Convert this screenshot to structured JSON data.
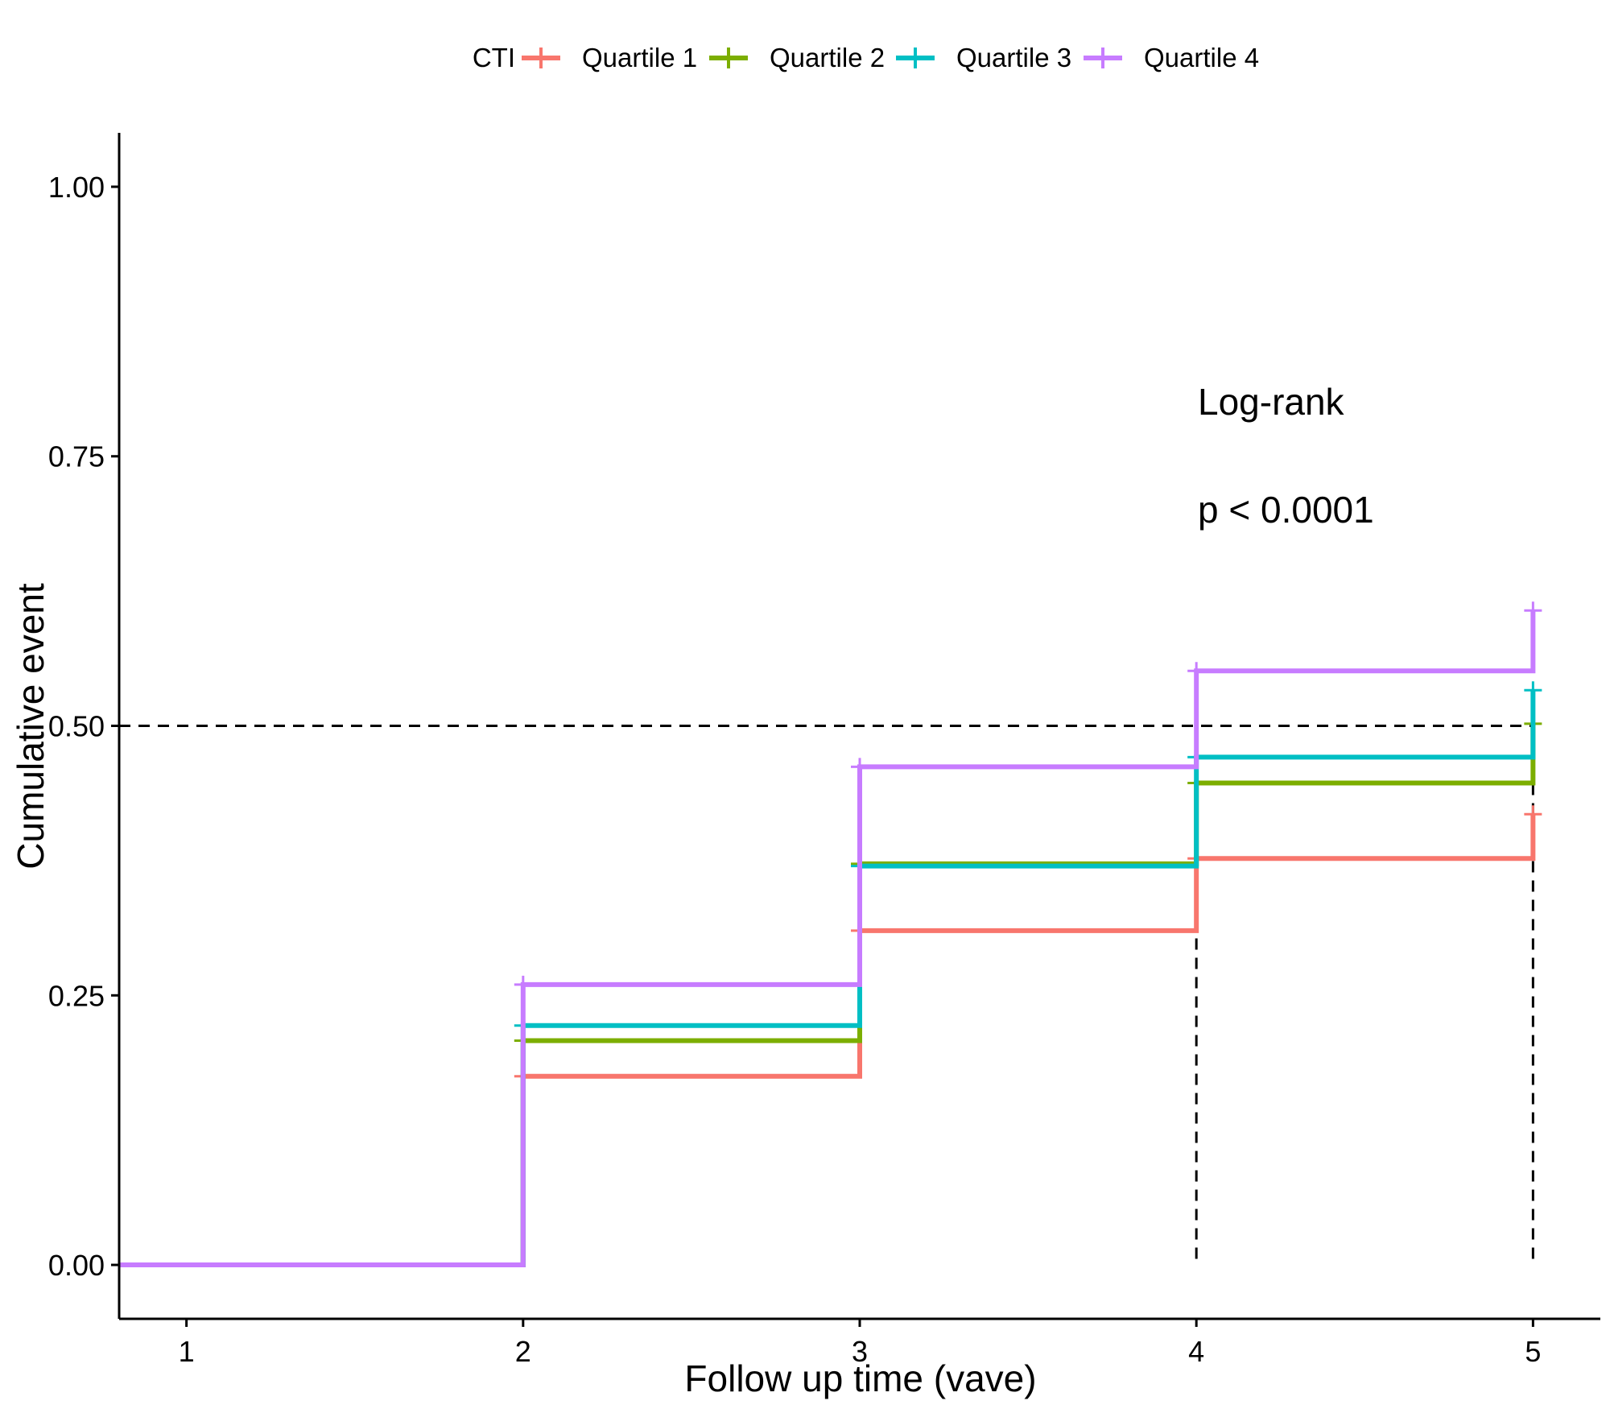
{
  "chart_data": {
    "type": "line",
    "step": true,
    "xlabel": "Follow up time (vave)",
    "ylabel": "Cumulative event",
    "xlim": [
      0.8,
      5.2
    ],
    "ylim": [
      -0.05,
      1.05
    ],
    "x_ticks": [
      1,
      2,
      3,
      4,
      5
    ],
    "y_ticks": [
      0.0,
      0.25,
      0.5,
      0.75,
      1.0
    ],
    "y_tick_labels": [
      "0.00",
      "0.25",
      "0.50",
      "0.75",
      "1.00"
    ],
    "grid": false,
    "legend": {
      "position": "top",
      "title": "CTI"
    },
    "reference_line": {
      "y": 0.5,
      "x_drops": [
        4,
        5
      ],
      "style": "dashed"
    },
    "annotation": {
      "line1": "Log-rank",
      "line2": "p < 0.0001",
      "x": 4,
      "y": 0.8
    },
    "series": [
      {
        "name": "Quartile 1",
        "color": "#F8766D",
        "x": [
          0.8,
          2,
          3,
          4,
          5
        ],
        "y": [
          0.0,
          0.175,
          0.31,
          0.377,
          0.418
        ],
        "censor_y": [
          0.175,
          0.31,
          0.377,
          0.418
        ]
      },
      {
        "name": "Quartile 2",
        "color": "#7CAE00",
        "x": [
          0.8,
          2,
          3,
          4,
          5
        ],
        "y": [
          0.0,
          0.208,
          0.372,
          0.447,
          0.502
        ],
        "censor_y": [
          0.208,
          0.372,
          0.447,
          0.502
        ]
      },
      {
        "name": "Quartile 3",
        "color": "#00BFC4",
        "x": [
          0.8,
          2,
          3,
          4,
          5
        ],
        "y": [
          0.0,
          0.222,
          0.37,
          0.471,
          0.533
        ],
        "censor_y": [
          0.222,
          0.37,
          0.471,
          0.533
        ]
      },
      {
        "name": "Quartile 4",
        "color": "#C77CFF",
        "x": [
          0.8,
          2,
          3,
          4,
          5
        ],
        "y": [
          0.0,
          0.26,
          0.462,
          0.551,
          0.607
        ],
        "censor_y": [
          0.26,
          0.462,
          0.551,
          0.607
        ]
      }
    ]
  }
}
